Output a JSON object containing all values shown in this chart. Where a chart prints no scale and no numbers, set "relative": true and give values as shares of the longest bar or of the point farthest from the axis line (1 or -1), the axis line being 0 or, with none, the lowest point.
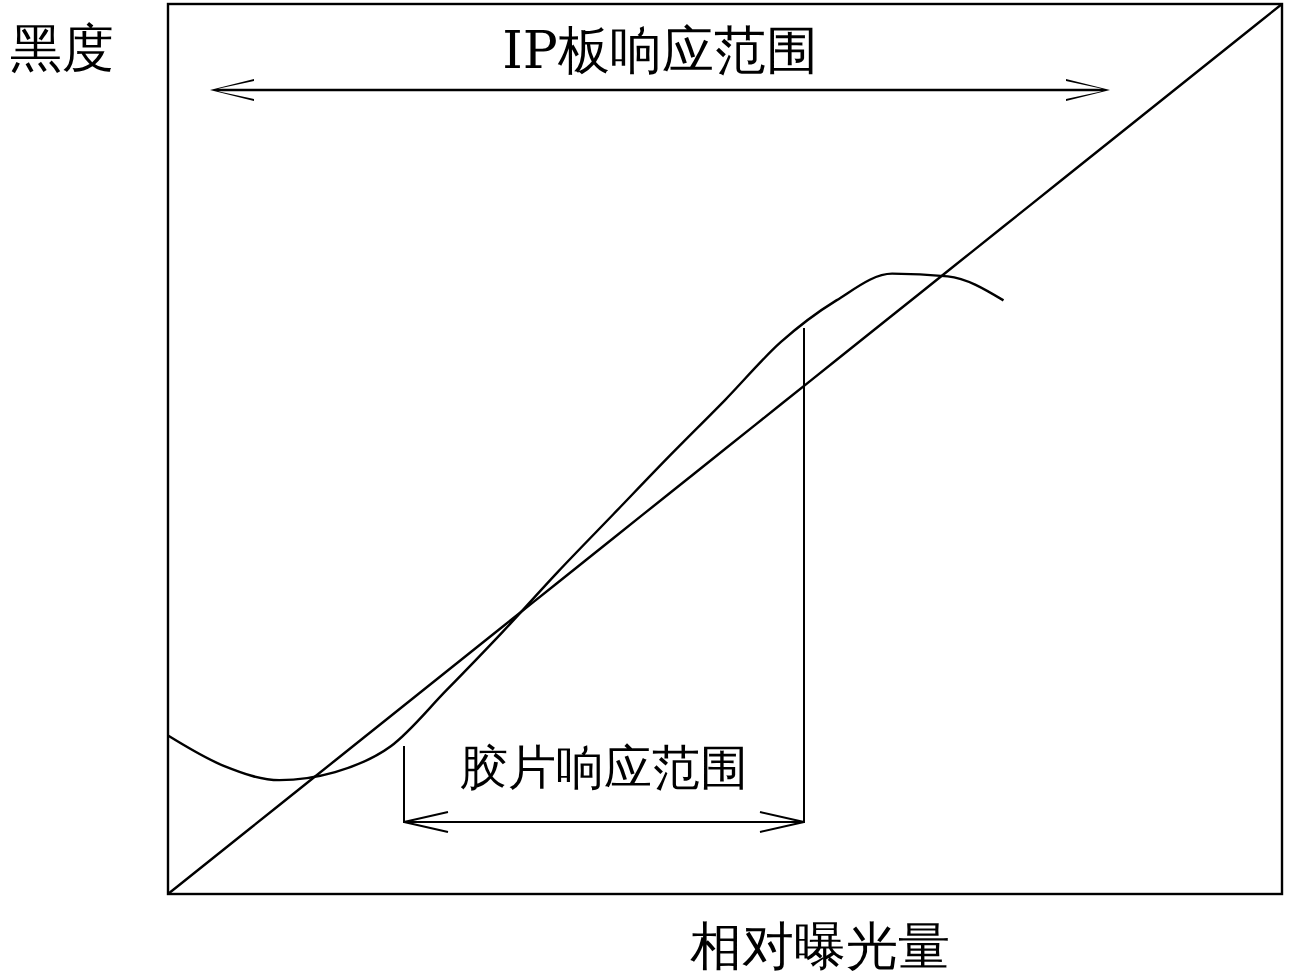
{
  "chart_data": {
    "type": "line",
    "relative": true,
    "xlabel": "相对曝光量",
    "ylabel": "黑度",
    "categories": [
      null,
      null,
      null,
      null,
      null,
      null,
      null,
      null,
      null,
      null,
      null,
      null,
      null,
      null,
      null,
      null,
      null,
      null,
      null,
      null,
      null
    ],
    "series": [
      {
        "color": "#000000",
        "values": [
          0,
          0.05,
          0.1,
          0.15,
          0.2,
          0.25,
          0.3,
          0.35,
          0.4,
          0.45,
          0.5,
          0.55,
          0.6,
          0.65,
          0.7,
          0.75,
          0.8,
          0.85,
          0.9,
          0.95,
          1
        ]
      },
      {
        "color": "#000000",
        "values": [
          0.178,
          0.144,
          0.128,
          0.137,
          0.166,
          0.229,
          0.294,
          0.362,
          0.427,
          0.492,
          0.555,
          0.62,
          0.667,
          0.697,
          0.694,
          0.667,
          null,
          null,
          null,
          null,
          null
        ]
      }
    ],
    "annotations": [
      "IP板响应范围",
      "胶片响应范围"
    ],
    "grid": false,
    "marker": "none",
    "line_style": "solid"
  }
}
